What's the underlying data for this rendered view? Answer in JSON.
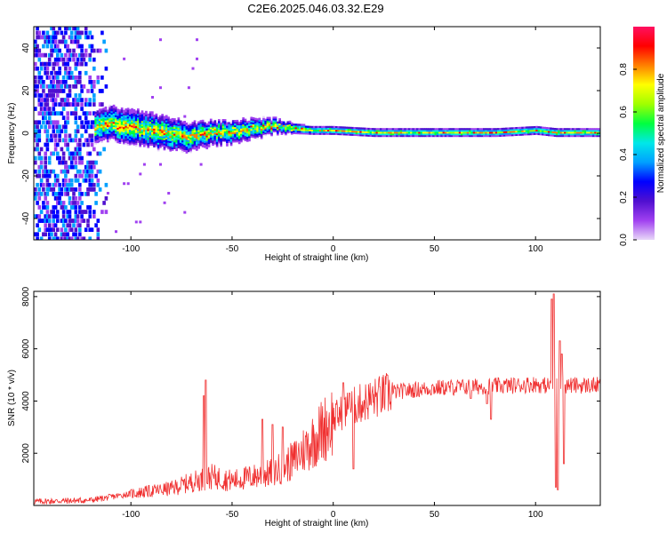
{
  "title": "C2E6.2025.046.03.32.E29",
  "chart_data": [
    {
      "type": "heatmap",
      "xlabel": "Height of straight line (km)",
      "ylabel": "Frequency (Hz)",
      "colorbar_label": "Normalized spectral amplitude",
      "xlim": [
        -148,
        132
      ],
      "ylim": [
        -50,
        50
      ],
      "x_ticks": [
        -100,
        -50,
        0,
        50,
        100
      ],
      "y_ticks": [
        -40,
        -20,
        0,
        20,
        40
      ],
      "colorbar_ticks": [
        0.0,
        0.2,
        0.4,
        0.6,
        0.8
      ],
      "colorbar_range": [
        0,
        1
      ],
      "colormap": [
        "#e8d8f8",
        "#a040f0",
        "#5010d0",
        "#0000ff",
        "#00a0ff",
        "#00e8e8",
        "#00ff40",
        "#a0ff00",
        "#ffff00",
        "#ff8000",
        "#ff0000",
        "#ff1060"
      ],
      "band_center_hz": [
        [
          -148,
          0
        ],
        [
          -118,
          3
        ],
        [
          -110,
          4
        ],
        [
          -100,
          3
        ],
        [
          -90,
          1
        ],
        [
          -80,
          -1
        ],
        [
          -70,
          -2
        ],
        [
          -60,
          0
        ],
        [
          -50,
          0
        ],
        [
          -40,
          2
        ],
        [
          -30,
          3
        ],
        [
          -20,
          2
        ],
        [
          -10,
          1
        ],
        [
          0,
          1
        ],
        [
          20,
          0
        ],
        [
          50,
          0
        ],
        [
          80,
          0
        ],
        [
          100,
          1
        ],
        [
          110,
          0
        ],
        [
          132,
          0
        ]
      ],
      "band_halfwidth_hz": [
        [
          -118,
          8
        ],
        [
          -100,
          9
        ],
        [
          -80,
          8
        ],
        [
          -60,
          6
        ],
        [
          -40,
          5
        ],
        [
          -25,
          3
        ],
        [
          -10,
          2
        ],
        [
          0,
          2
        ],
        [
          132,
          2
        ]
      ],
      "noise_until_km": -118
    },
    {
      "type": "line",
      "xlabel": "Height of straight line (km)",
      "ylabel": "SNR (10 * v/v)",
      "xlim": [
        -148,
        132
      ],
      "ylim": [
        0,
        8200
      ],
      "x_ticks": [
        -100,
        -50,
        0,
        50,
        100
      ],
      "y_ticks": [
        2000,
        4000,
        6000,
        8000
      ],
      "color": "#f03030",
      "trend": [
        [
          -148,
          150
        ],
        [
          -120,
          200
        ],
        [
          -100,
          450
        ],
        [
          -80,
          650
        ],
        [
          -70,
          900
        ],
        [
          -60,
          1100
        ],
        [
          -50,
          950
        ],
        [
          -40,
          1100
        ],
        [
          -30,
          1250
        ],
        [
          -20,
          1700
        ],
        [
          -10,
          2500
        ],
        [
          0,
          3300
        ],
        [
          5,
          3600
        ],
        [
          10,
          3800
        ],
        [
          20,
          4100
        ],
        [
          30,
          4350
        ],
        [
          50,
          4500
        ],
        [
          70,
          4550
        ],
        [
          90,
          4600
        ],
        [
          100,
          4650
        ],
        [
          104,
          4600
        ],
        [
          132,
          4600
        ]
      ],
      "notable_points": [
        [
          -63,
          4800
        ],
        [
          -64,
          4200
        ],
        [
          -35,
          3300
        ],
        [
          -30,
          3100
        ],
        [
          -25,
          3000
        ],
        [
          5,
          4700
        ],
        [
          8,
          4300
        ],
        [
          10,
          1400
        ],
        [
          68,
          4100
        ],
        [
          76,
          3900
        ],
        [
          78,
          3300
        ],
        [
          103,
          4700
        ],
        [
          108,
          7900
        ],
        [
          109,
          8100
        ],
        [
          110,
          700
        ],
        [
          111,
          600
        ],
        [
          112,
          6300
        ],
        [
          113,
          5800
        ],
        [
          114,
          1600
        ]
      ]
    }
  ]
}
